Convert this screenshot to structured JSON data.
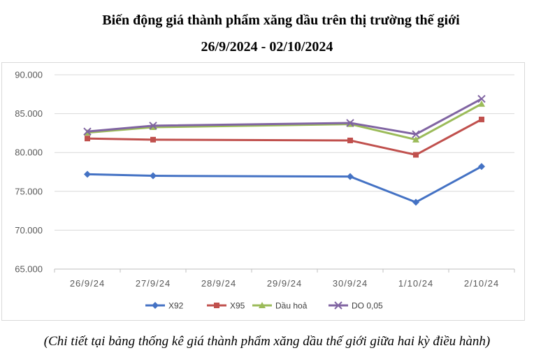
{
  "chart_data": {
    "type": "line",
    "title": "Biến động giá thành phẩm xăng dầu trên thị trường thế giới",
    "subtitle": "26/9/2024 - 02/10/2024",
    "xlabel": "",
    "ylabel": "",
    "categories": [
      "26/9/24",
      "27/9/24",
      "28/9/24",
      "29/9/24",
      "30/9/24",
      "1/10/24",
      "2/10/24"
    ],
    "ylim": [
      65000,
      90000
    ],
    "yticks": [
      "65.000",
      "70.000",
      "75.000",
      "80.000",
      "85.000",
      "90.000"
    ],
    "ytick_values": [
      65000,
      70000,
      75000,
      80000,
      85000,
      90000
    ],
    "grid": true,
    "legend_position": "bottom",
    "series": [
      {
        "name": "X92",
        "color": "#4472c4",
        "marker": "diamond",
        "points": [
          {
            "x": "26/9/24",
            "y": 77200
          },
          {
            "x": "27/9/24",
            "y": 77000
          },
          {
            "x": "30/9/24",
            "y": 76900
          },
          {
            "x": "1/10/24",
            "y": 73600
          },
          {
            "x": "2/10/24",
            "y": 78200
          }
        ]
      },
      {
        "name": "X95",
        "color": "#c0504d",
        "marker": "square",
        "points": [
          {
            "x": "26/9/24",
            "y": 81800
          },
          {
            "x": "27/9/24",
            "y": 81650
          },
          {
            "x": "30/9/24",
            "y": 81550
          },
          {
            "x": "1/10/24",
            "y": 79700
          },
          {
            "x": "2/10/24",
            "y": 84250
          }
        ]
      },
      {
        "name": "Dầu hoả",
        "color": "#9bbb59",
        "marker": "triangle",
        "points": [
          {
            "x": "26/9/24",
            "y": 82550
          },
          {
            "x": "27/9/24",
            "y": 83250
          },
          {
            "x": "30/9/24",
            "y": 83650
          },
          {
            "x": "1/10/24",
            "y": 81650
          },
          {
            "x": "2/10/24",
            "y": 86250
          }
        ]
      },
      {
        "name": "DO 0,05",
        "color": "#8064a2",
        "marker": "x",
        "points": [
          {
            "x": "26/9/24",
            "y": 82700
          },
          {
            "x": "27/9/24",
            "y": 83450
          },
          {
            "x": "30/9/24",
            "y": 83800
          },
          {
            "x": "1/10/24",
            "y": 82350
          },
          {
            "x": "2/10/24",
            "y": 86900
          }
        ]
      }
    ]
  },
  "caption": "(Chi tiết tại bảng thống kê giá thành phẩm xăng dầu thế giới giữa hai kỳ điều hành)"
}
